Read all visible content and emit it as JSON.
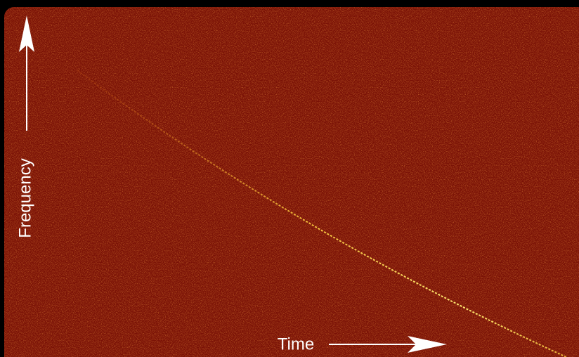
{
  "labels": {
    "y_axis": "Frequency",
    "x_axis": "Time"
  }
}
